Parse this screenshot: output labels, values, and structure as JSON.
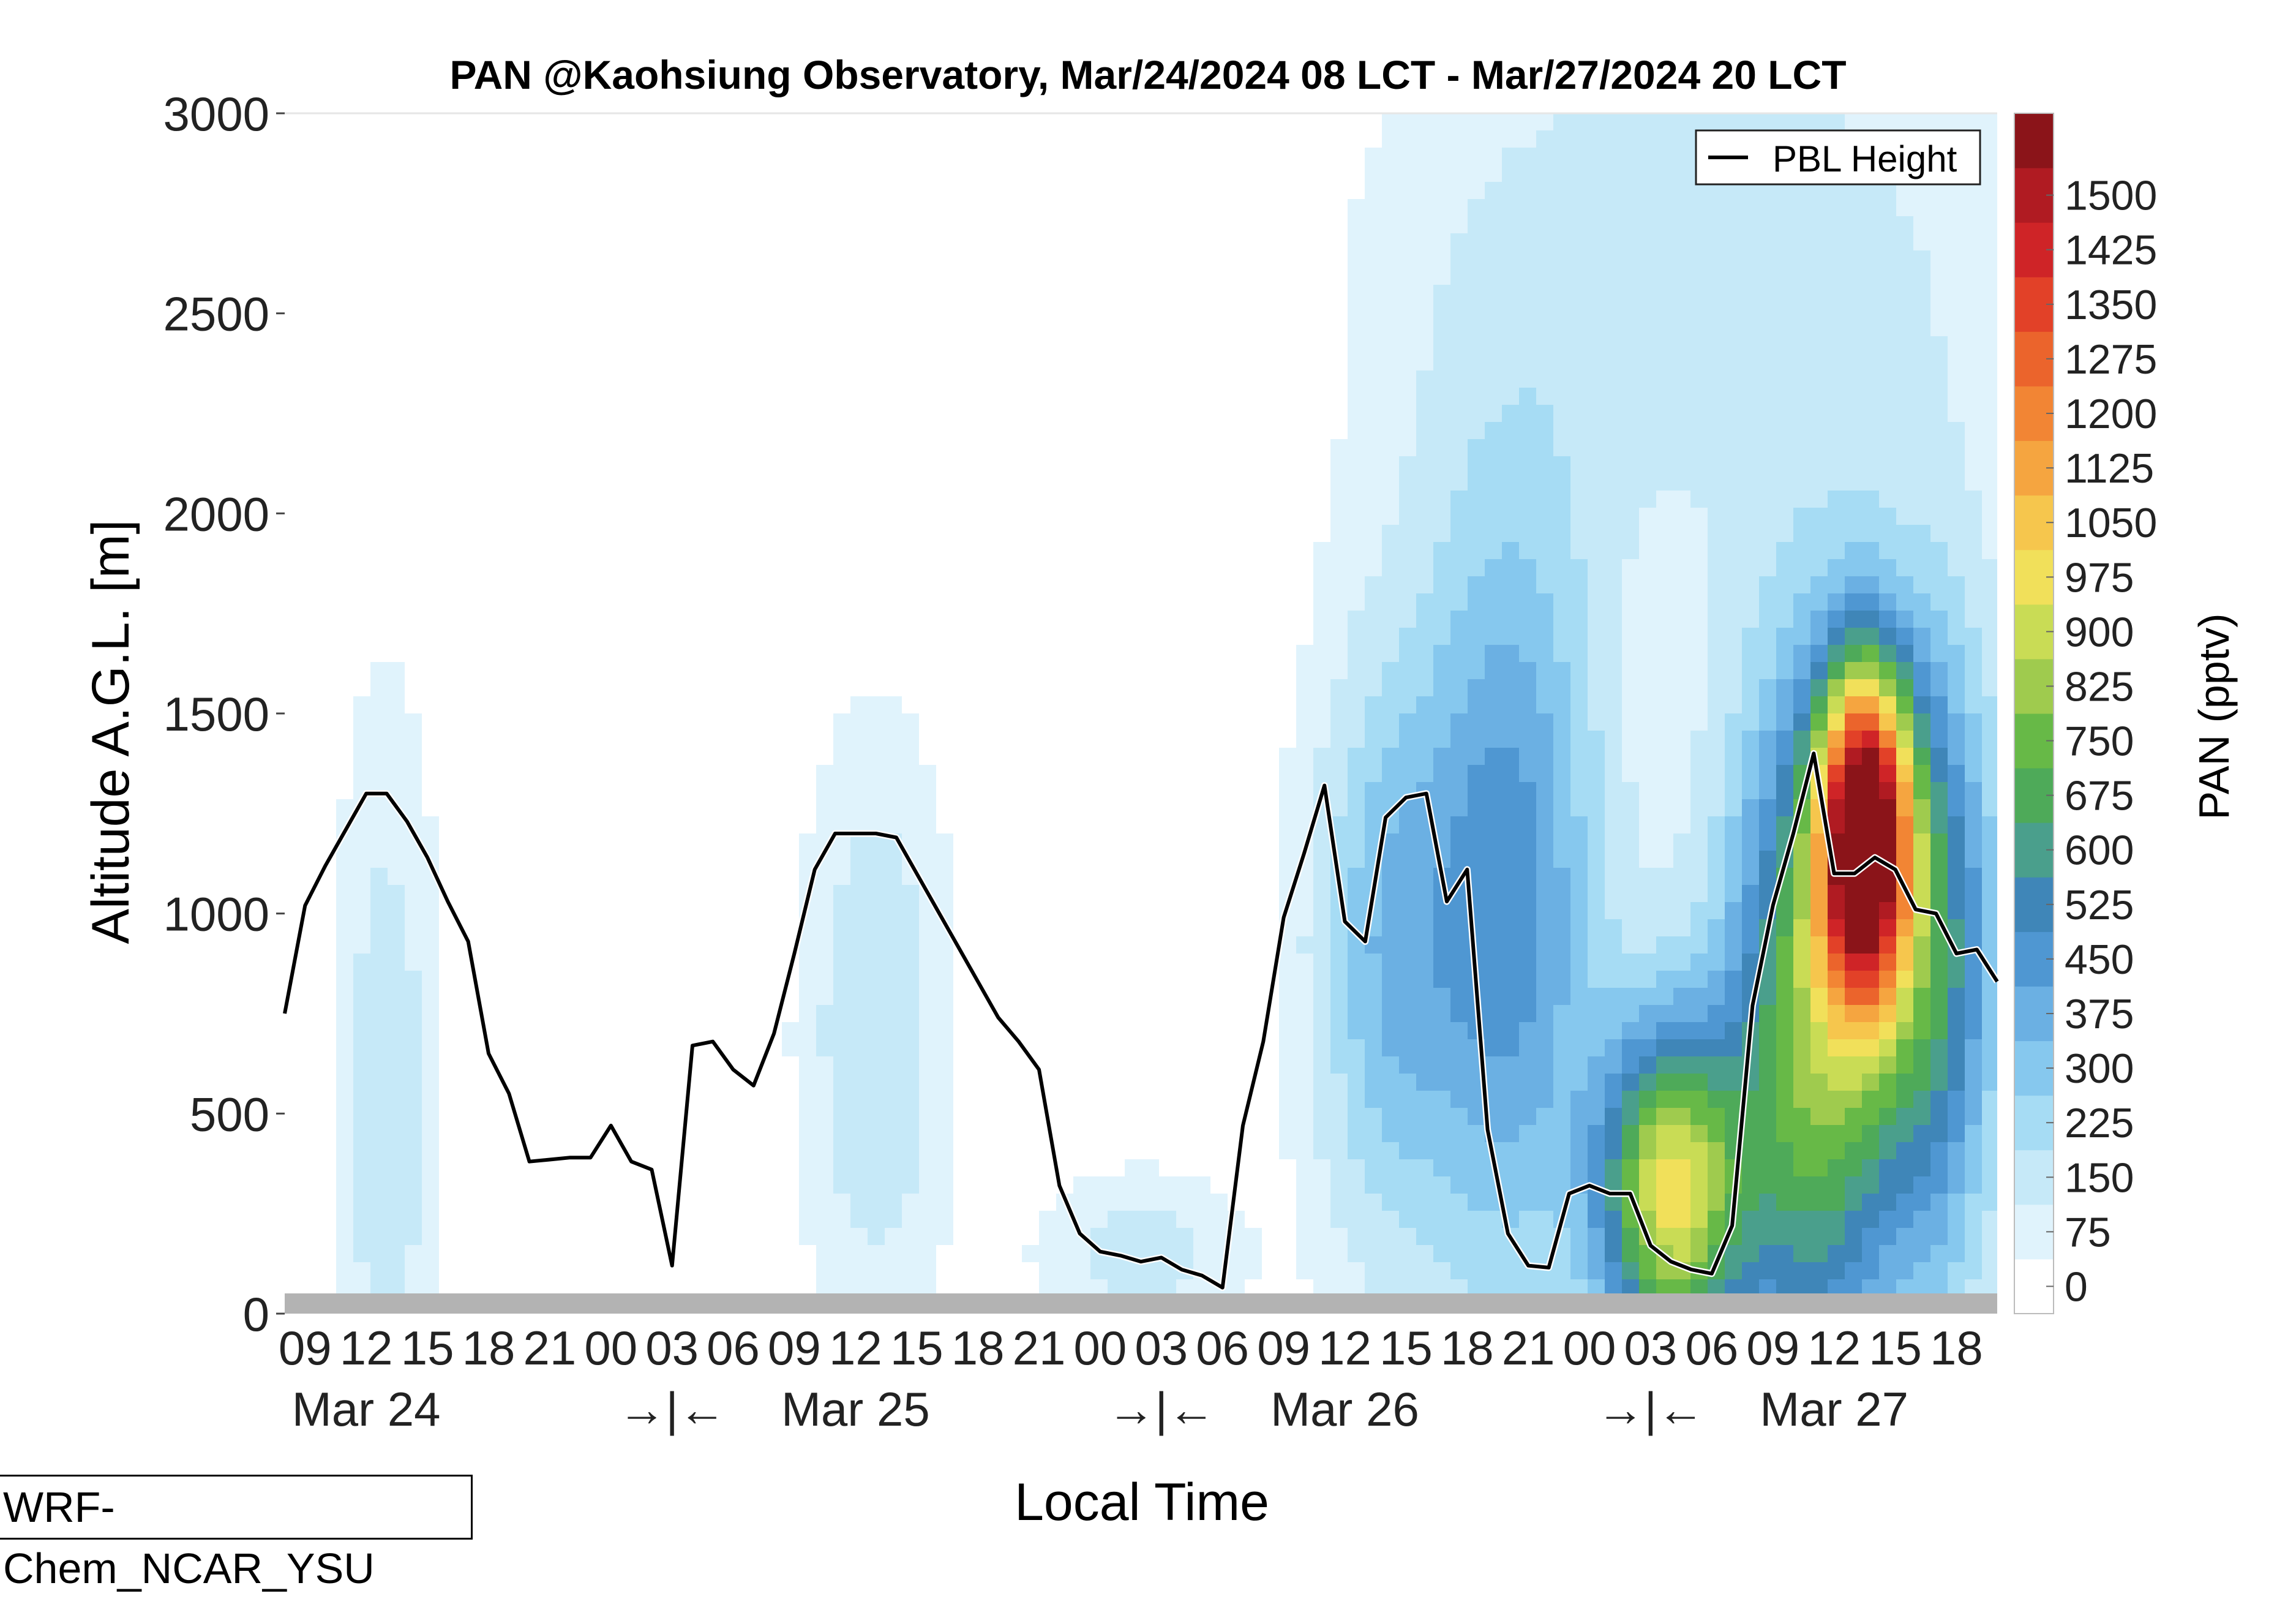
{
  "chart_data": {
    "type": "heatmap",
    "title": "PAN @Kaohsiung Observatory, Mar/24/2024 08 LCT - Mar/27/2024 20 LCT",
    "xlabel": "Local Time",
    "ylabel": "Altitude A.G.L. [m]",
    "ylim": [
      0,
      3000
    ],
    "yticks": [
      0,
      500,
      1000,
      1500,
      2000,
      2500,
      3000
    ],
    "xlim_hours": [
      0,
      84
    ],
    "hour_tick_labels": [
      "09",
      "12",
      "15",
      "18",
      "21",
      "00",
      "03",
      "06",
      "09",
      "12",
      "15",
      "18",
      "21",
      "00",
      "03",
      "06",
      "09",
      "12",
      "15",
      "18",
      "21",
      "00",
      "03",
      "06",
      "09",
      "12",
      "15",
      "18"
    ],
    "day_labels": [
      "Mar 24",
      "→|←",
      "Mar 25",
      "→|←",
      "Mar 26",
      "→|←",
      "Mar 27"
    ],
    "colorbar": {
      "label": "PAN (pptv)",
      "ticks": [
        0,
        75,
        150,
        225,
        300,
        375,
        450,
        525,
        600,
        675,
        750,
        825,
        900,
        975,
        1050,
        1125,
        1200,
        1275,
        1350,
        1425,
        1500
      ],
      "colors": [
        "#ffffff",
        "#e0f3fc",
        "#c6e9f8",
        "#a6dcf4",
        "#86c8ee",
        "#6bb0e3",
        "#4f97d2",
        "#3f86b8",
        "#4a9f8c",
        "#4eaa59",
        "#67b947",
        "#9fcb4e",
        "#c9dc55",
        "#f1e05a",
        "#f6c64d",
        "#f5a540",
        "#f28534",
        "#eb642c",
        "#e24128",
        "#cf2427",
        "#b01b22",
        "#8b1419"
      ]
    },
    "series": [
      {
        "name": "PBL Height",
        "x": [
          0,
          1,
          2,
          3,
          4,
          5,
          6,
          7,
          8,
          9,
          10,
          11,
          12,
          13,
          14,
          15,
          16,
          17,
          18,
          19,
          20,
          21,
          22,
          23,
          24,
          25,
          26,
          27,
          28,
          29,
          30,
          31,
          32,
          33,
          34,
          35,
          36,
          37,
          38,
          39,
          40,
          41,
          42,
          43,
          44,
          45,
          46,
          47,
          48,
          49,
          50,
          51,
          52,
          53,
          54,
          55,
          56,
          57,
          58,
          59,
          60,
          61,
          62,
          63,
          64,
          65,
          66,
          67,
          68,
          69,
          70,
          71,
          72,
          73,
          74,
          75,
          76,
          77,
          78,
          79,
          80,
          81,
          82,
          83,
          84
        ],
        "y": [
          750,
          1020,
          1120,
          1210,
          1300,
          1300,
          1230,
          1140,
          1030,
          930,
          650,
          550,
          380,
          385,
          390,
          390,
          470,
          380,
          360,
          120,
          670,
          680,
          610,
          570,
          700,
          900,
          1110,
          1200,
          1200,
          1200,
          1190,
          1100,
          1010,
          920,
          830,
          740,
          680,
          610,
          320,
          200,
          155,
          145,
          130,
          140,
          110,
          95,
          65,
          470,
          680,
          990,
          1150,
          1320,
          980,
          930,
          1240,
          1290,
          1300,
          1030,
          1110,
          460,
          200,
          120,
          115,
          300,
          320,
          300,
          300,
          170,
          130,
          110,
          100,
          220,
          770,
          1020,
          1200,
          1400,
          1100,
          1100,
          1140,
          1110,
          1010,
          1000,
          900,
          910,
          830
        ]
      }
    ],
    "legend_position": "top-right",
    "footer_label": "WRF-Chem_NCAR_YSU"
  }
}
